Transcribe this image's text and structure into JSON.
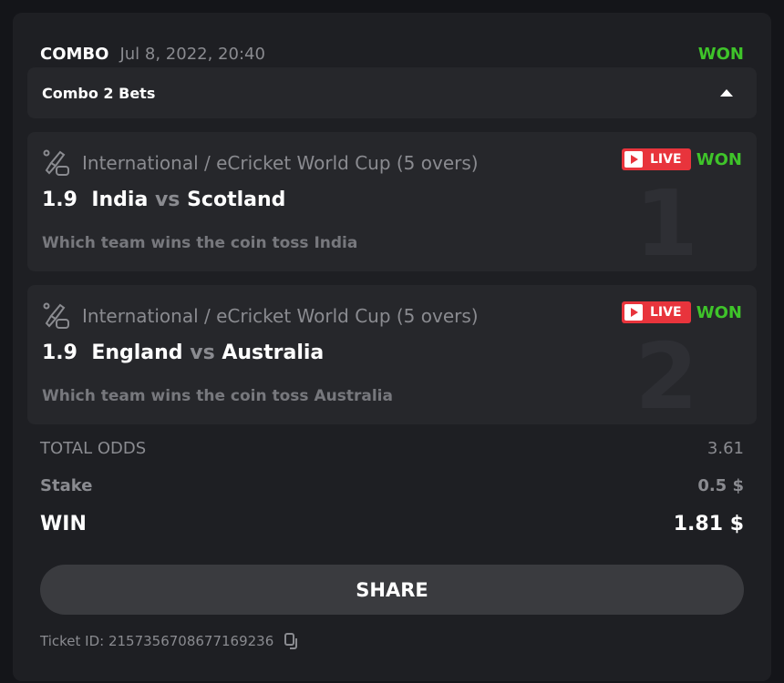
{
  "header": {
    "type": "COMBO",
    "date": "Jul 8, 2022, 20:40",
    "status": "WON"
  },
  "combo": {
    "label": "Combo 2 Bets",
    "toggle_icon": "caret-up-icon"
  },
  "bets": [
    {
      "number": "1",
      "league": "International / eCricket World Cup (5 overs)",
      "live": "LIVE",
      "status": "WON",
      "odds": "1.9",
      "home": "India",
      "vs": "vs",
      "away": "Scotland",
      "market": "Which team wins the coin toss India"
    },
    {
      "number": "2",
      "league": "International / eCricket World Cup (5 overs)",
      "live": "LIVE",
      "status": "WON",
      "odds": "1.9",
      "home": "England",
      "vs": "vs",
      "away": "Australia",
      "market": "Which team wins the coin toss Australia"
    }
  ],
  "summary": {
    "total_odds_label": "TOTAL ODDS",
    "total_odds": "3.61",
    "stake_label": "Stake",
    "stake": "0.5 $",
    "win_label": "WIN",
    "win": "1.81 $"
  },
  "share_label": "SHARE",
  "ticket": "Ticket ID: 2157356708677169236",
  "colors": {
    "won": "#3fc42a",
    "live": "#e8343c"
  }
}
